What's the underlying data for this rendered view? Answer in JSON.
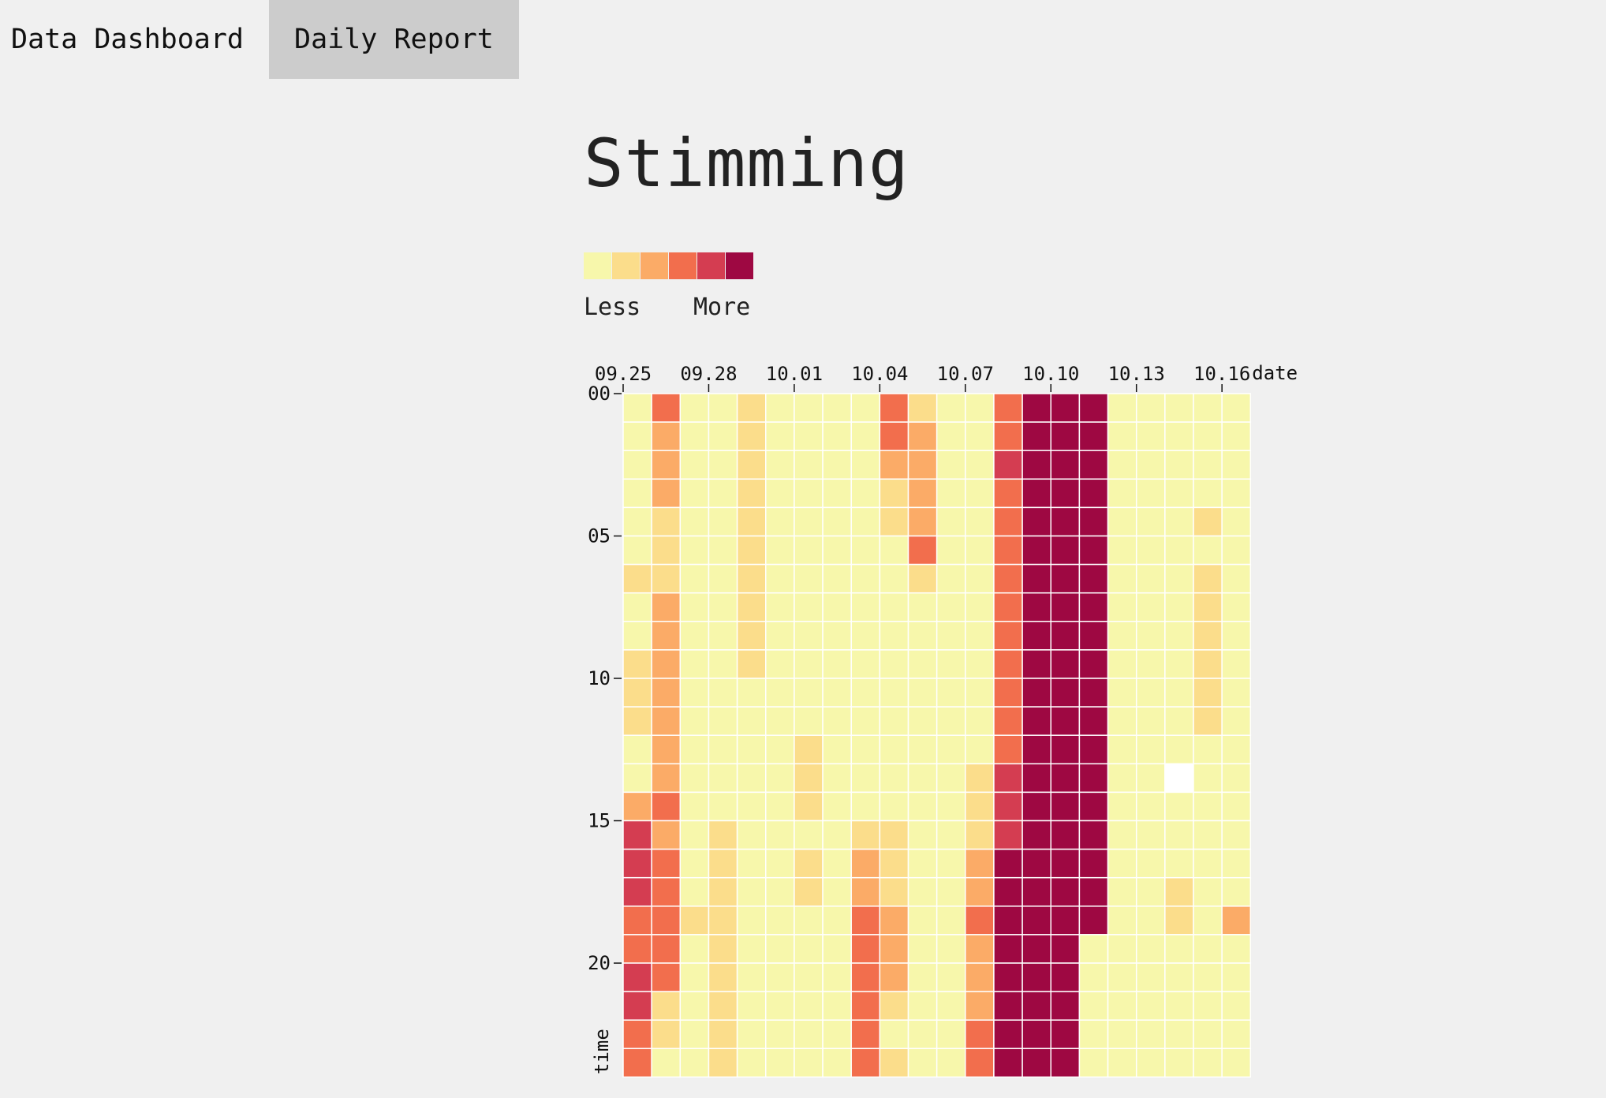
{
  "nav": {
    "tabs": [
      {
        "label": "Data Dashboard",
        "active": false
      },
      {
        "label": "Daily Report",
        "active": true
      }
    ]
  },
  "title": "Stimming",
  "legend": {
    "less_label": "Less",
    "more_label": "More",
    "colors": [
      "#f7f7ab",
      "#fbdd8b",
      "#fbab67",
      "#f26e4d",
      "#d43d51",
      "#9e0842"
    ]
  },
  "colors": {
    "background": "#f0f0f0",
    "missing_cell": "#ffffff",
    "active_tab": "#cccccc"
  },
  "chart_data": {
    "type": "heatmap",
    "xlabel": "date",
    "ylabel": "time",
    "x": [
      "09.25",
      "09.26",
      "09.27",
      "09.28",
      "09.29",
      "09.30",
      "10.01",
      "10.02",
      "10.03",
      "10.04",
      "10.05",
      "10.06",
      "10.07",
      "10.08",
      "10.09",
      "10.10",
      "10.11",
      "10.12",
      "10.13",
      "10.14",
      "10.15",
      "10.16"
    ],
    "x_ticks": [
      "09.25",
      "09.28",
      "10.01",
      "10.04",
      "10.07",
      "10.10",
      "10.13",
      "10.16"
    ],
    "y": [
      "00",
      "01",
      "02",
      "03",
      "04",
      "05",
      "06",
      "07",
      "08",
      "09",
      "10",
      "11",
      "12",
      "13",
      "14",
      "15",
      "16",
      "17",
      "18",
      "19",
      "20",
      "21",
      "22",
      "23"
    ],
    "y_ticks": [
      "00",
      "05",
      "10",
      "15",
      "20"
    ],
    "scale_levels": 6,
    "values": [
      [
        0,
        3,
        0,
        0,
        1,
        0,
        0,
        0,
        0,
        3,
        1,
        0,
        0,
        3,
        5,
        5,
        5,
        0,
        0,
        0,
        0,
        0
      ],
      [
        0,
        2,
        0,
        0,
        1,
        0,
        0,
        0,
        0,
        3,
        2,
        0,
        0,
        3,
        5,
        5,
        5,
        0,
        0,
        0,
        0,
        0
      ],
      [
        0,
        2,
        0,
        0,
        1,
        0,
        0,
        0,
        0,
        2,
        2,
        0,
        0,
        4,
        5,
        5,
        5,
        0,
        0,
        0,
        0,
        0
      ],
      [
        0,
        2,
        0,
        0,
        1,
        0,
        0,
        0,
        0,
        1,
        2,
        0,
        0,
        3,
        5,
        5,
        5,
        0,
        0,
        0,
        0,
        0
      ],
      [
        0,
        1,
        0,
        0,
        1,
        0,
        0,
        0,
        0,
        1,
        2,
        0,
        0,
        3,
        5,
        5,
        5,
        0,
        0,
        0,
        1,
        0
      ],
      [
        0,
        1,
        0,
        0,
        1,
        0,
        0,
        0,
        0,
        0,
        3,
        0,
        0,
        3,
        5,
        5,
        5,
        0,
        0,
        0,
        0,
        0
      ],
      [
        1,
        1,
        0,
        0,
        1,
        0,
        0,
        0,
        0,
        0,
        1,
        0,
        0,
        3,
        5,
        5,
        5,
        0,
        0,
        0,
        1,
        0
      ],
      [
        0,
        2,
        0,
        0,
        1,
        0,
        0,
        0,
        0,
        0,
        0,
        0,
        0,
        3,
        5,
        5,
        5,
        0,
        0,
        0,
        1,
        0
      ],
      [
        0,
        2,
        0,
        0,
        1,
        0,
        0,
        0,
        0,
        0,
        0,
        0,
        0,
        3,
        5,
        5,
        5,
        0,
        0,
        0,
        1,
        0
      ],
      [
        1,
        2,
        0,
        0,
        1,
        0,
        0,
        0,
        0,
        0,
        0,
        0,
        0,
        3,
        5,
        5,
        5,
        0,
        0,
        0,
        1,
        0
      ],
      [
        1,
        2,
        0,
        0,
        0,
        0,
        0,
        0,
        0,
        0,
        0,
        0,
        0,
        3,
        5,
        5,
        5,
        0,
        0,
        0,
        1,
        0
      ],
      [
        1,
        2,
        0,
        0,
        0,
        0,
        0,
        0,
        0,
        0,
        0,
        0,
        0,
        3,
        5,
        5,
        5,
        0,
        0,
        0,
        1,
        0
      ],
      [
        0,
        2,
        0,
        0,
        0,
        0,
        1,
        0,
        0,
        0,
        0,
        0,
        0,
        3,
        5,
        5,
        5,
        0,
        0,
        0,
        0,
        0
      ],
      [
        0,
        2,
        0,
        0,
        0,
        0,
        1,
        0,
        0,
        0,
        0,
        0,
        1,
        4,
        5,
        5,
        5,
        0,
        0,
        null,
        0,
        0
      ],
      [
        2,
        3,
        0,
        0,
        0,
        0,
        1,
        0,
        0,
        0,
        0,
        0,
        1,
        4,
        5,
        5,
        5,
        0,
        0,
        0,
        0,
        0
      ],
      [
        4,
        2,
        0,
        1,
        0,
        0,
        0,
        0,
        1,
        1,
        0,
        0,
        1,
        4,
        5,
        5,
        5,
        0,
        0,
        0,
        0,
        0
      ],
      [
        4,
        3,
        0,
        1,
        0,
        0,
        1,
        0,
        2,
        1,
        0,
        0,
        2,
        5,
        5,
        5,
        5,
        0,
        0,
        0,
        0,
        0
      ],
      [
        4,
        3,
        0,
        1,
        0,
        0,
        1,
        0,
        2,
        1,
        0,
        0,
        2,
        5,
        5,
        5,
        5,
        0,
        0,
        1,
        0,
        0
      ],
      [
        3,
        3,
        1,
        1,
        0,
        0,
        0,
        0,
        3,
        2,
        0,
        0,
        3,
        5,
        5,
        5,
        5,
        0,
        0,
        1,
        0,
        2
      ],
      [
        3,
        3,
        0,
        1,
        0,
        0,
        0,
        0,
        3,
        2,
        0,
        0,
        2,
        5,
        5,
        5,
        0,
        0,
        0,
        0,
        0,
        0
      ],
      [
        4,
        3,
        0,
        1,
        0,
        0,
        0,
        0,
        3,
        2,
        0,
        0,
        2,
        5,
        5,
        5,
        0,
        0,
        0,
        0,
        0,
        0
      ],
      [
        4,
        1,
        0,
        1,
        0,
        0,
        0,
        0,
        3,
        1,
        0,
        0,
        2,
        5,
        5,
        5,
        0,
        0,
        0,
        0,
        0,
        0
      ],
      [
        3,
        1,
        0,
        1,
        0,
        0,
        0,
        0,
        3,
        0,
        0,
        0,
        3,
        5,
        5,
        5,
        0,
        0,
        0,
        0,
        0,
        0
      ],
      [
        3,
        0,
        0,
        1,
        0,
        0,
        0,
        0,
        3,
        1,
        0,
        0,
        3,
        5,
        5,
        5,
        0,
        0,
        0,
        0,
        0,
        0
      ]
    ]
  }
}
